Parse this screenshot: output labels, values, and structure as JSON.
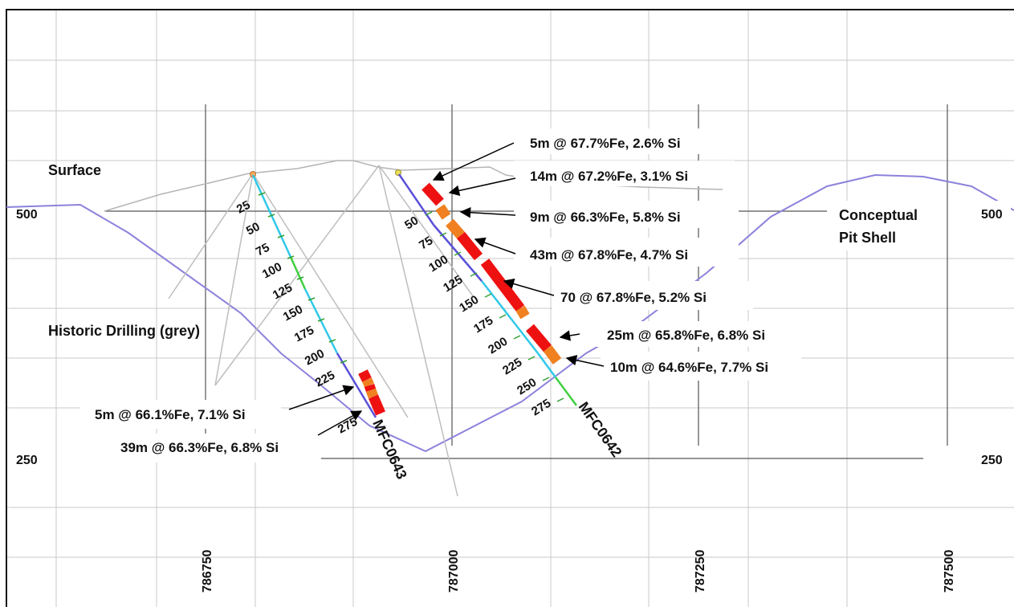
{
  "labels": {
    "surface": "Surface",
    "historic": "Historic Drilling (grey)",
    "pit_line1": "Conceptual",
    "pit_line2": "Pit Shell"
  },
  "elevation_labels": {
    "rl_500": "500",
    "rl_250": "250"
  },
  "easting_labels": [
    "786750",
    "787000",
    "787250",
    "787500"
  ],
  "holes": {
    "left": {
      "name": "MFC0643",
      "depth_ticks": [
        "25",
        "50",
        "75",
        "100",
        "125",
        "150",
        "175",
        "200",
        "225",
        "275"
      ]
    },
    "right": {
      "name": "MFC0642",
      "depth_ticks": [
        "50",
        "75",
        "100",
        "125",
        "150",
        "175",
        "200",
        "225",
        "250",
        "275"
      ]
    }
  },
  "intercepts": [
    "5m @ 67.7%Fe, 2.6% Si",
    "14m @ 67.2%Fe, 3.1% Si",
    "9m @ 66.3%Fe, 5.8% Si",
    "43m @ 67.8%Fe, 4.7% Si",
    "70 @ 67.8%Fe, 5.2% Si",
    "25m @ 65.8%Fe, 6.8% Si",
    "10m @ 64.6%Fe, 7.7% Si",
    "5m @ 66.1%Fe, 7.1% Si",
    "39m @ 66.3%Fe, 6.8% Si"
  ],
  "colors": {
    "grid": "#c8c8c8",
    "pit_shell": "#8c82dc",
    "surface": "#b4b4b4",
    "historic": "#bebebe",
    "ore_high": "#ee1111",
    "ore_mid": "#f08020",
    "frame": "#111111"
  }
}
